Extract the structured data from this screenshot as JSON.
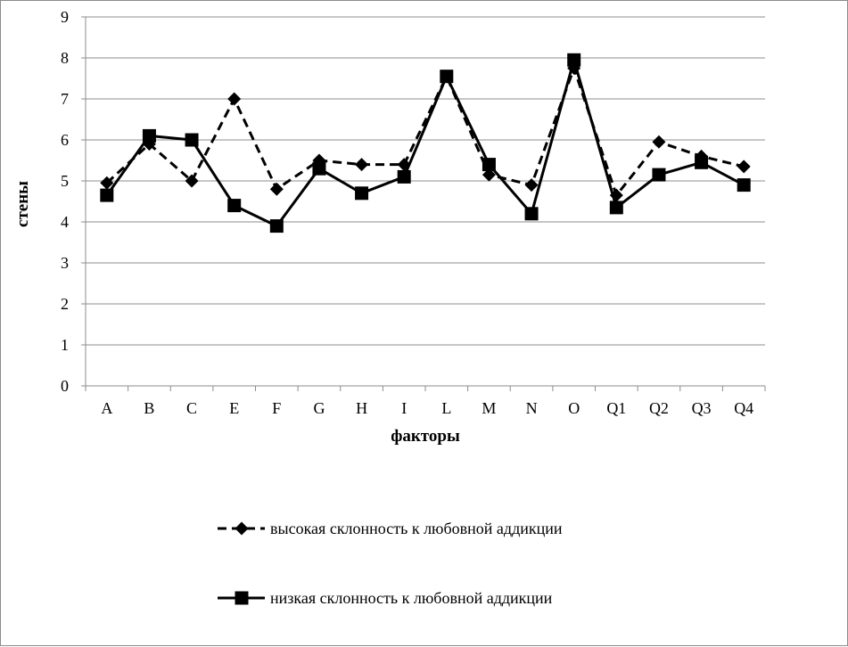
{
  "chart_data": {
    "type": "line",
    "xlabel": "факторы",
    "ylabel": "стены",
    "ylim": [
      0,
      9
    ],
    "yticks": [
      "0",
      "1",
      "2",
      "3",
      "4",
      "5",
      "6",
      "7",
      "8",
      "9"
    ],
    "categories": [
      "A",
      "B",
      "C",
      "E",
      "F",
      "G",
      "H",
      "I",
      "L",
      "M",
      "N",
      "O",
      "Q1",
      "Q2",
      "Q3",
      "Q4"
    ],
    "grid": "horizontal",
    "legend_position": "bottom",
    "series": [
      {
        "name": "высокая склонность к любовной аддикции",
        "line_style": "dashed",
        "marker": "diamond",
        "color": "#000000",
        "values": [
          4.95,
          5.9,
          5.0,
          7.0,
          4.8,
          5.5,
          5.4,
          5.4,
          7.55,
          5.15,
          4.9,
          7.75,
          4.65,
          5.95,
          5.6,
          5.35
        ]
      },
      {
        "name": "низкая склонность к любовной аддикции",
        "line_style": "solid",
        "marker": "square",
        "color": "#000000",
        "values": [
          4.65,
          6.1,
          6.0,
          4.4,
          3.9,
          5.3,
          4.7,
          5.1,
          7.55,
          5.4,
          4.2,
          7.95,
          4.35,
          5.15,
          5.45,
          4.9
        ]
      }
    ]
  }
}
